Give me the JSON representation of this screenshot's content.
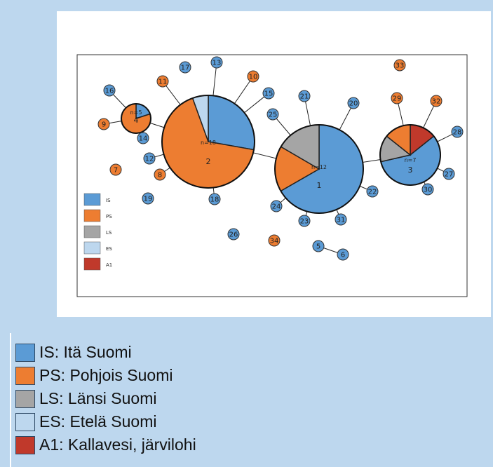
{
  "colors": {
    "IS": "#5b9bd5",
    "PS": "#ed7d31",
    "LS": "#a5a5a5",
    "ES": "#bdd7ee",
    "A1": "#c0392b"
  },
  "inner_legend": [
    {
      "code": "IS",
      "text": "IS"
    },
    {
      "code": "PS",
      "text": "PS"
    },
    {
      "code": "LS",
      "text": "LS"
    },
    {
      "code": "ES",
      "text": "ES"
    },
    {
      "code": "A1",
      "text": "A1"
    }
  ],
  "pies": [
    {
      "id": "1",
      "label": "1",
      "n_label": "n=12",
      "slices": [
        {
          "code": "IS",
          "frac": 0.667
        },
        {
          "code": "PS",
          "frac": 0.167
        },
        {
          "code": "LS",
          "frac": 0.166
        }
      ]
    },
    {
      "id": "2",
      "label": "2",
      "n_label": "n=18",
      "slices": [
        {
          "code": "IS",
          "frac": 0.278
        },
        {
          "code": "PS",
          "frac": 0.667
        },
        {
          "code": "ES",
          "frac": 0.055
        }
      ]
    },
    {
      "id": "3",
      "label": "3",
      "n_label": "n=7",
      "slices": [
        {
          "code": "A1",
          "frac": 0.143
        },
        {
          "code": "IS",
          "frac": 0.571
        },
        {
          "code": "LS",
          "frac": 0.143
        },
        {
          "code": "PS",
          "frac": 0.143
        }
      ]
    },
    {
      "id": "4",
      "label": "4",
      "n_label": "n=5",
      "slices": [
        {
          "code": "IS",
          "frac": 0.2
        },
        {
          "code": "PS",
          "frac": 0.8
        }
      ]
    }
  ],
  "nodes": [
    {
      "label": "5",
      "code": "IS"
    },
    {
      "label": "6",
      "code": "IS"
    },
    {
      "label": "7",
      "code": "PS"
    },
    {
      "label": "8",
      "code": "PS"
    },
    {
      "label": "9",
      "code": "PS"
    },
    {
      "label": "10",
      "code": "PS"
    },
    {
      "label": "11",
      "code": "PS"
    },
    {
      "label": "12",
      "code": "IS"
    },
    {
      "label": "13",
      "code": "IS"
    },
    {
      "label": "14",
      "code": "IS"
    },
    {
      "label": "15",
      "code": "IS"
    },
    {
      "label": "16",
      "code": "IS"
    },
    {
      "label": "17",
      "code": "IS"
    },
    {
      "label": "18",
      "code": "IS"
    },
    {
      "label": "19",
      "code": "IS"
    },
    {
      "label": "20",
      "code": "IS"
    },
    {
      "label": "21",
      "code": "IS"
    },
    {
      "label": "22",
      "code": "IS"
    },
    {
      "label": "23",
      "code": "IS"
    },
    {
      "label": "24",
      "code": "IS"
    },
    {
      "label": "25",
      "code": "IS"
    },
    {
      "label": "26",
      "code": "IS"
    },
    {
      "label": "27",
      "code": "IS"
    },
    {
      "label": "28",
      "code": "IS"
    },
    {
      "label": "29",
      "code": "PS"
    },
    {
      "label": "30",
      "code": "IS"
    },
    {
      "label": "31",
      "code": "IS"
    },
    {
      "label": "32",
      "code": "PS"
    },
    {
      "label": "33",
      "code": "PS"
    },
    {
      "label": "34",
      "code": "PS"
    }
  ],
  "legend": [
    {
      "code": "IS",
      "text": "IS: Itä Suomi"
    },
    {
      "code": "PS",
      "text": "PS: Pohjois Suomi"
    },
    {
      "code": "LS",
      "text": "LS: Länsi Suomi"
    },
    {
      "code": "ES",
      "text": "ES: Etelä Suomi"
    },
    {
      "code": "A1",
      "text": "A1: Kallavesi, järvilohi"
    }
  ]
}
